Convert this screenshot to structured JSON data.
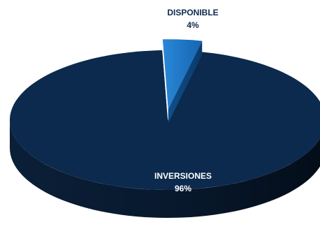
{
  "chart_data": {
    "type": "pie",
    "style": "3d-exploded",
    "slices": [
      {
        "label": "INVERSIONES",
        "value": 96,
        "value_label": "96%",
        "color": "#0c2a4d",
        "label_color": "#ffffff"
      },
      {
        "label": "DISPONIBLE",
        "value": 4,
        "value_label": "4%",
        "color": "#1f78c8",
        "label_color": "#0c2a4d"
      }
    ]
  }
}
